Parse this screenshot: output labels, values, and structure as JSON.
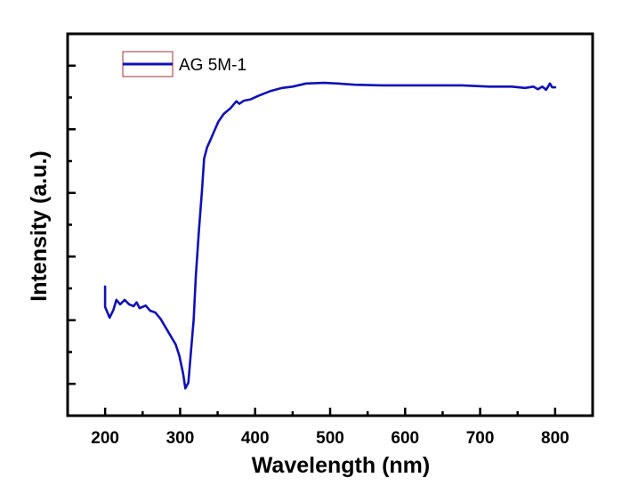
{
  "chart_data": {
    "type": "line",
    "title": "",
    "xlabel": "Wavelength (nm)",
    "ylabel": "Intensity (a.u.)",
    "xlim": [
      150,
      850
    ],
    "ylim": [
      0,
      6
    ],
    "x_ticks": [
      200,
      300,
      400,
      500,
      600,
      700,
      800
    ],
    "x_tick_labels": [
      "200",
      "300",
      "400",
      "500",
      "600",
      "700",
      "800"
    ],
    "x_minor_ticks": [
      250,
      350,
      450,
      550,
      650,
      750
    ],
    "y_ticks": [
      0.5,
      1.5,
      2.5,
      3.5,
      4.5,
      5.5
    ],
    "y_tick_labels": [],
    "y_minor_ticks": [
      1,
      2,
      3,
      4,
      5
    ],
    "grid": false,
    "legend": {
      "placement": "top-left",
      "entries": [
        "AG 5M-1"
      ]
    },
    "series": [
      {
        "name": "AG 5M-1",
        "color": "#1010b8",
        "x": [
          200,
          200,
          206,
          211,
          215,
          220,
          226,
          232,
          238,
          242,
          246,
          254,
          260,
          267,
          274,
          281,
          288,
          294,
          299,
          304,
          307,
          311,
          314,
          318,
          321,
          325,
          329,
          332,
          336,
          340,
          345,
          351,
          358,
          367,
          375,
          379,
          385,
          394,
          405,
          420,
          436,
          450,
          468,
          492,
          510,
          533,
          569,
          605,
          640,
          676,
          712,
          742,
          760,
          771,
          777,
          783,
          788,
          793,
          796,
          800
        ],
        "y": [
          2.03,
          1.71,
          1.54,
          1.66,
          1.82,
          1.75,
          1.82,
          1.75,
          1.72,
          1.78,
          1.69,
          1.73,
          1.65,
          1.62,
          1.52,
          1.38,
          1.24,
          1.12,
          0.94,
          0.66,
          0.43,
          0.52,
          0.94,
          1.5,
          2.2,
          2.9,
          3.52,
          4.04,
          4.22,
          4.32,
          4.46,
          4.62,
          4.74,
          4.83,
          4.94,
          4.9,
          4.95,
          4.97,
          5.03,
          5.1,
          5.15,
          5.17,
          5.22,
          5.23,
          5.22,
          5.2,
          5.19,
          5.19,
          5.19,
          5.19,
          5.17,
          5.17,
          5.15,
          5.17,
          5.13,
          5.17,
          5.12,
          5.22,
          5.16,
          5.16
        ]
      }
    ]
  },
  "colors": {
    "series": "#1010b8",
    "legend_border": "#a03030",
    "axis": "#000000"
  }
}
